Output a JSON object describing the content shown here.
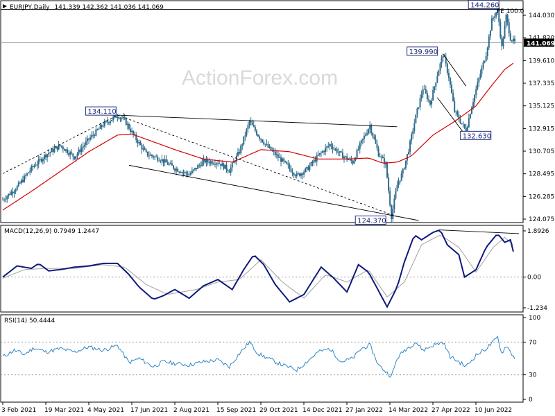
{
  "window": {
    "title": "EURJPY,Daily",
    "ohlc": "141.339 142.362 141.036 141.069",
    "watermark": "ActionForex.com"
  },
  "colors": {
    "candles": "#2e6a8a",
    "sma": "#d40000",
    "macd": "#0d1a7a",
    "signal": "#a0a0a0",
    "rsi": "#2f86c6",
    "trend": "#000000",
    "current_price_box": "#000000"
  },
  "chart_data": [
    {
      "type": "candlestick",
      "title": "EURJPY,Daily",
      "ohlc_last": [
        141.339,
        142.362,
        141.036,
        141.069
      ],
      "current_price_label": "141.069",
      "ylim": [
        124.0,
        144.9
      ],
      "y_ticks": [
        "144.030",
        "141.820",
        "139.610",
        "137.335",
        "135.125",
        "132.915",
        "130.705",
        "128.495",
        "126.285",
        "124.075"
      ],
      "x_tick_labels": [
        "3 Feb 2021",
        "19 Mar 2021",
        "4 May 2021",
        "17 Jun 2021",
        "2 Aug 2021",
        "15 Sep 2021",
        "29 Oct 2021",
        "14 Dec 2021",
        "27 Jan 2022",
        "14 Mar 2022",
        "27 Apr 2022",
        "10 Jun 2022"
      ],
      "price_path": [
        [
          0,
          126.0
        ],
        [
          10,
          127.2
        ],
        [
          20,
          129.0
        ],
        [
          30,
          130.3
        ],
        [
          40,
          131.2
        ],
        [
          50,
          130.1
        ],
        [
          60,
          131.8
        ],
        [
          70,
          133.2
        ],
        [
          80,
          134.1
        ],
        [
          85,
          133.6
        ],
        [
          92,
          132.0
        ],
        [
          100,
          130.4
        ],
        [
          110,
          129.9
        ],
        [
          120,
          129.0
        ],
        [
          130,
          128.4
        ],
        [
          140,
          129.7
        ],
        [
          150,
          129.6
        ],
        [
          158,
          128.8
        ],
        [
          165,
          130.6
        ],
        [
          172,
          133.5
        ],
        [
          178,
          132.2
        ],
        [
          185,
          131.0
        ],
        [
          195,
          129.7
        ],
        [
          205,
          128.3
        ],
        [
          212,
          128.9
        ],
        [
          220,
          130.2
        ],
        [
          228,
          131.3
        ],
        [
          236,
          130.3
        ],
        [
          244,
          129.6
        ],
        [
          250,
          131.5
        ],
        [
          256,
          133.1
        ],
        [
          262,
          130.4
        ],
        [
          267,
          129.4
        ],
        [
          271,
          124.37
        ],
        [
          275,
          127.4
        ],
        [
          279,
          128.7
        ],
        [
          283,
          130.8
        ],
        [
          288,
          134.0
        ],
        [
          293,
          136.7
        ],
        [
          298,
          135.2
        ],
        [
          303,
          138.0
        ],
        [
          307,
          139.99
        ],
        [
          311,
          137.8
        ],
        [
          315,
          134.5
        ],
        [
          320,
          133.3
        ],
        [
          323,
          132.63
        ],
        [
          327,
          135.0
        ],
        [
          332,
          137.6
        ],
        [
          337,
          140.0
        ],
        [
          341,
          143.2
        ],
        [
          345,
          144.26
        ],
        [
          348,
          140.6
        ],
        [
          351,
          143.6
        ],
        [
          354,
          141.5
        ],
        [
          357,
          141.069
        ]
      ],
      "sma_path": [
        [
          0,
          125.0
        ],
        [
          20,
          126.8
        ],
        [
          40,
          128.7
        ],
        [
          60,
          130.6
        ],
        [
          80,
          132.2
        ],
        [
          90,
          132.3
        ],
        [
          100,
          131.8
        ],
        [
          120,
          130.8
        ],
        [
          140,
          129.9
        ],
        [
          160,
          129.6
        ],
        [
          180,
          130.8
        ],
        [
          200,
          130.6
        ],
        [
          220,
          129.9
        ],
        [
          240,
          129.9
        ],
        [
          255,
          130.0
        ],
        [
          265,
          129.5
        ],
        [
          275,
          129.6
        ],
        [
          285,
          130.2
        ],
        [
          300,
          132.2
        ],
        [
          315,
          133.5
        ],
        [
          330,
          135.0
        ],
        [
          340,
          136.8
        ],
        [
          350,
          138.5
        ],
        [
          357,
          139.2
        ]
      ],
      "trendlines": [
        [
          [
            80,
            134.11
          ],
          [
            275,
            133.0
          ]
        ],
        [
          [
            88,
            129.3
          ],
          [
            290,
            124.0
          ]
        ],
        [
          [
            0,
            128.5
          ],
          [
            80,
            134.11
          ]
        ],
        [
          [
            80,
            134.11
          ],
          [
            275,
            124.37
          ]
        ],
        [
          [
            0,
            144.26
          ],
          [
            357,
            144.26
          ]
        ],
        [
          [
            307,
            139.99
          ],
          [
            323,
            136.9
          ]
        ],
        [
          [
            303,
            135.8
          ],
          [
            322,
            132.3
          ]
        ]
      ],
      "labels": [
        {
          "text": "134.110",
          "x": 80,
          "y": 134.11
        },
        {
          "text": "124.370",
          "x": 271,
          "y": 124.37
        },
        {
          "text": "139.990",
          "x": 307,
          "y": 139.99
        },
        {
          "text": "132.630",
          "x": 323,
          "y": 132.63
        },
        {
          "text": "144.260",
          "x": 345,
          "y": 144.26
        }
      ],
      "fibo_label": "FE 100.0"
    },
    {
      "type": "line",
      "title": "MACD(12,26,9) 0.7949 1.2447",
      "ylim": [
        -1.35,
        2.0
      ],
      "y_ticks": [
        "1.8926",
        "0.00",
        "-1.234"
      ],
      "macd_path": [
        [
          0,
          0.0
        ],
        [
          10,
          0.45
        ],
        [
          20,
          0.35
        ],
        [
          25,
          0.55
        ],
        [
          32,
          0.25
        ],
        [
          40,
          0.3
        ],
        [
          50,
          0.4
        ],
        [
          60,
          0.45
        ],
        [
          70,
          0.55
        ],
        [
          80,
          0.55
        ],
        [
          88,
          0.1
        ],
        [
          95,
          -0.4
        ],
        [
          105,
          -0.9
        ],
        [
          112,
          -0.75
        ],
        [
          120,
          -0.5
        ],
        [
          130,
          -0.85
        ],
        [
          140,
          -0.35
        ],
        [
          150,
          -0.1
        ],
        [
          160,
          -0.5
        ],
        [
          168,
          0.3
        ],
        [
          175,
          0.9
        ],
        [
          182,
          0.5
        ],
        [
          190,
          -0.3
        ],
        [
          200,
          -1.0
        ],
        [
          210,
          -0.7
        ],
        [
          222,
          0.4
        ],
        [
          230,
          0.0
        ],
        [
          240,
          -0.6
        ],
        [
          248,
          0.5
        ],
        [
          255,
          0.2
        ],
        [
          262,
          -0.55
        ],
        [
          268,
          -1.2
        ],
        [
          275,
          -0.4
        ],
        [
          280,
          0.6
        ],
        [
          287,
          1.7
        ],
        [
          292,
          1.5
        ],
        [
          300,
          1.8
        ],
        [
          305,
          1.9
        ],
        [
          310,
          1.3
        ],
        [
          318,
          0.9
        ],
        [
          322,
          0.0
        ],
        [
          330,
          0.3
        ],
        [
          337,
          1.2
        ],
        [
          345,
          1.75
        ],
        [
          350,
          1.4
        ],
        [
          354,
          1.5
        ],
        [
          357,
          0.79
        ]
      ],
      "signal_path": [
        [
          0,
          -0.05
        ],
        [
          15,
          0.3
        ],
        [
          30,
          0.35
        ],
        [
          50,
          0.35
        ],
        [
          70,
          0.5
        ],
        [
          85,
          0.4
        ],
        [
          100,
          -0.3
        ],
        [
          115,
          -0.7
        ],
        [
          135,
          -0.5
        ],
        [
          150,
          -0.2
        ],
        [
          165,
          -0.1
        ],
        [
          180,
          0.7
        ],
        [
          195,
          -0.2
        ],
        [
          210,
          -0.85
        ],
        [
          225,
          0.1
        ],
        [
          240,
          -0.2
        ],
        [
          255,
          0.3
        ],
        [
          268,
          -0.8
        ],
        [
          280,
          -0.2
        ],
        [
          292,
          1.3
        ],
        [
          305,
          1.7
        ],
        [
          318,
          1.2
        ],
        [
          330,
          0.2
        ],
        [
          342,
          1.2
        ],
        [
          350,
          1.6
        ],
        [
          357,
          1.24
        ]
      ],
      "trendline": [
        [
          305,
          1.9
        ],
        [
          357,
          1.75
        ]
      ]
    },
    {
      "type": "line",
      "title": "RSI(14) 50.4444",
      "ylim": [
        0,
        100
      ],
      "y_ticks": [
        "100",
        "70",
        "30",
        "0"
      ],
      "levels": [
        70,
        30
      ],
      "rsi_path": [
        [
          0,
          52
        ],
        [
          8,
          60
        ],
        [
          15,
          55
        ],
        [
          22,
          63
        ],
        [
          30,
          58
        ],
        [
          40,
          62
        ],
        [
          50,
          58
        ],
        [
          60,
          64
        ],
        [
          70,
          60
        ],
        [
          80,
          66
        ],
        [
          88,
          45
        ],
        [
          95,
          50
        ],
        [
          105,
          40
        ],
        [
          112,
          46
        ],
        [
          120,
          44
        ],
        [
          130,
          42
        ],
        [
          140,
          46
        ],
        [
          150,
          48
        ],
        [
          158,
          40
        ],
        [
          165,
          56
        ],
        [
          172,
          70
        ],
        [
          178,
          56
        ],
        [
          185,
          50
        ],
        [
          195,
          42
        ],
        [
          205,
          36
        ],
        [
          212,
          46
        ],
        [
          220,
          58
        ],
        [
          228,
          62
        ],
        [
          236,
          46
        ],
        [
          244,
          50
        ],
        [
          250,
          62
        ],
        [
          256,
          66
        ],
        [
          262,
          42
        ],
        [
          267,
          34
        ],
        [
          271,
          28
        ],
        [
          275,
          50
        ],
        [
          280,
          60
        ],
        [
          288,
          70
        ],
        [
          293,
          60
        ],
        [
          300,
          66
        ],
        [
          307,
          70
        ],
        [
          312,
          52
        ],
        [
          318,
          46
        ],
        [
          323,
          40
        ],
        [
          330,
          54
        ],
        [
          337,
          62
        ],
        [
          342,
          70
        ],
        [
          345,
          76
        ],
        [
          348,
          56
        ],
        [
          351,
          66
        ],
        [
          354,
          58
        ],
        [
          357,
          50.4
        ]
      ]
    }
  ]
}
